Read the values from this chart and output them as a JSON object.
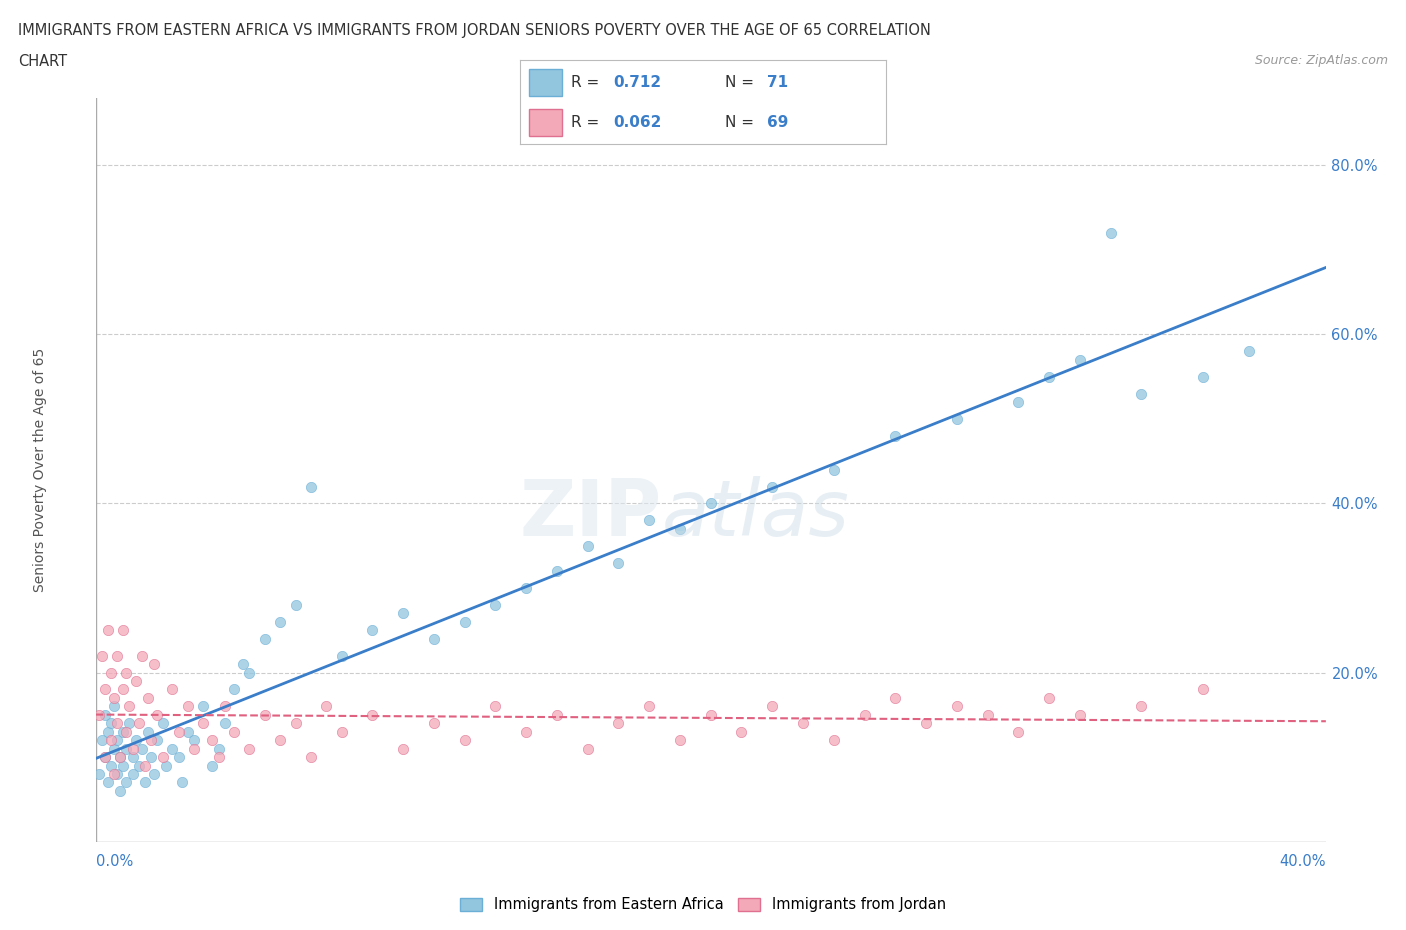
{
  "title_line1": "IMMIGRANTS FROM EASTERN AFRICA VS IMMIGRANTS FROM JORDAN SENIORS POVERTY OVER THE AGE OF 65 CORRELATION",
  "title_line2": "CHART",
  "source_text": "Source: ZipAtlas.com",
  "ylabel": "Seniors Poverty Over the Age of 65",
  "ytick_values": [
    0.2,
    0.4,
    0.6,
    0.8
  ],
  "xlim": [
    0.0,
    0.4
  ],
  "ylim": [
    0.0,
    0.88
  ],
  "color_blue": "#92c5de",
  "color_blue_edge": "#6baed6",
  "color_pink": "#f4a9b8",
  "color_pink_edge": "#e07090",
  "color_blue_line": "#3a7dc9",
  "color_pink_line": "#e06080",
  "watermark_zip": "ZIP",
  "watermark_atlas": "atlas",
  "legend_label1": "Immigrants from Eastern Africa",
  "legend_label2": "Immigrants from Jordan",
  "legend_r1": "0.712",
  "legend_n1": "71",
  "legend_r2": "0.062",
  "legend_n2": "69",
  "eastern_africa_x": [
    0.001,
    0.002,
    0.003,
    0.003,
    0.004,
    0.004,
    0.005,
    0.005,
    0.006,
    0.006,
    0.007,
    0.007,
    0.008,
    0.008,
    0.009,
    0.009,
    0.01,
    0.01,
    0.011,
    0.012,
    0.012,
    0.013,
    0.014,
    0.015,
    0.016,
    0.017,
    0.018,
    0.019,
    0.02,
    0.022,
    0.023,
    0.025,
    0.027,
    0.028,
    0.03,
    0.032,
    0.035,
    0.038,
    0.04,
    0.042,
    0.045,
    0.048,
    0.05,
    0.055,
    0.06,
    0.065,
    0.07,
    0.08,
    0.09,
    0.1,
    0.11,
    0.12,
    0.13,
    0.14,
    0.15,
    0.16,
    0.17,
    0.18,
    0.19,
    0.2,
    0.22,
    0.24,
    0.26,
    0.28,
    0.3,
    0.31,
    0.32,
    0.34,
    0.36,
    0.375,
    0.33
  ],
  "eastern_africa_y": [
    0.08,
    0.12,
    0.1,
    0.15,
    0.07,
    0.13,
    0.09,
    0.14,
    0.11,
    0.16,
    0.08,
    0.12,
    0.1,
    0.06,
    0.13,
    0.09,
    0.11,
    0.07,
    0.14,
    0.1,
    0.08,
    0.12,
    0.09,
    0.11,
    0.07,
    0.13,
    0.1,
    0.08,
    0.12,
    0.14,
    0.09,
    0.11,
    0.1,
    0.07,
    0.13,
    0.12,
    0.16,
    0.09,
    0.11,
    0.14,
    0.18,
    0.21,
    0.2,
    0.24,
    0.26,
    0.28,
    0.42,
    0.22,
    0.25,
    0.27,
    0.24,
    0.26,
    0.28,
    0.3,
    0.32,
    0.35,
    0.33,
    0.38,
    0.37,
    0.4,
    0.42,
    0.44,
    0.48,
    0.5,
    0.52,
    0.55,
    0.57,
    0.53,
    0.55,
    0.58,
    0.72
  ],
  "jordan_x": [
    0.001,
    0.002,
    0.003,
    0.003,
    0.004,
    0.005,
    0.005,
    0.006,
    0.006,
    0.007,
    0.007,
    0.008,
    0.009,
    0.009,
    0.01,
    0.01,
    0.011,
    0.012,
    0.013,
    0.014,
    0.015,
    0.016,
    0.017,
    0.018,
    0.019,
    0.02,
    0.022,
    0.025,
    0.027,
    0.03,
    0.032,
    0.035,
    0.038,
    0.04,
    0.042,
    0.045,
    0.05,
    0.055,
    0.06,
    0.065,
    0.07,
    0.075,
    0.08,
    0.09,
    0.1,
    0.11,
    0.12,
    0.13,
    0.14,
    0.15,
    0.16,
    0.17,
    0.18,
    0.19,
    0.2,
    0.21,
    0.22,
    0.23,
    0.24,
    0.25,
    0.26,
    0.27,
    0.28,
    0.29,
    0.3,
    0.31,
    0.32,
    0.34,
    0.36
  ],
  "jordan_y": [
    0.15,
    0.22,
    0.1,
    0.18,
    0.25,
    0.12,
    0.2,
    0.08,
    0.17,
    0.14,
    0.22,
    0.1,
    0.18,
    0.25,
    0.13,
    0.2,
    0.16,
    0.11,
    0.19,
    0.14,
    0.22,
    0.09,
    0.17,
    0.12,
    0.21,
    0.15,
    0.1,
    0.18,
    0.13,
    0.16,
    0.11,
    0.14,
    0.12,
    0.1,
    0.16,
    0.13,
    0.11,
    0.15,
    0.12,
    0.14,
    0.1,
    0.16,
    0.13,
    0.15,
    0.11,
    0.14,
    0.12,
    0.16,
    0.13,
    0.15,
    0.11,
    0.14,
    0.16,
    0.12,
    0.15,
    0.13,
    0.16,
    0.14,
    0.12,
    0.15,
    0.17,
    0.14,
    0.16,
    0.15,
    0.13,
    0.17,
    0.15,
    0.16,
    0.18
  ]
}
